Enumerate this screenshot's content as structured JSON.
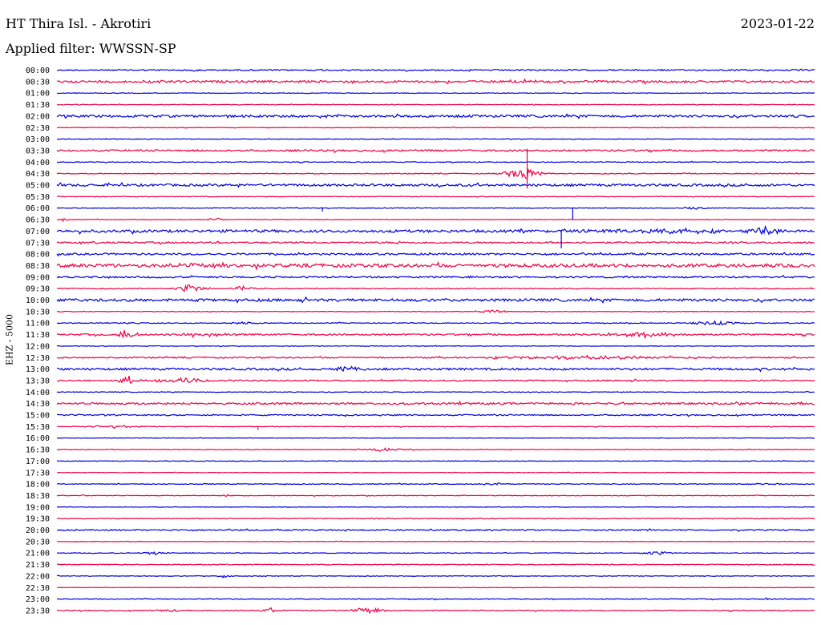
{
  "header": {
    "station": "HT Thira Isl. - Akrotiri",
    "date": "2023-01-22",
    "filter": "Applied filter: WWSSN-SP",
    "channel": "EHZ - 5000"
  },
  "colors": {
    "blue_trace": "#0000dd",
    "red_trace": "#ee0044"
  },
  "chart_data": {
    "type": "line",
    "title": "HT Thira Isl. - Akrotiri",
    "subtitle": "Applied filter: WWSSN-SP",
    "ylabel": "EHZ - 5000",
    "date": "2023-01-22",
    "row_interval_minutes": 30,
    "trace_colors": [
      "#0000dd",
      "#ee0044"
    ],
    "rows": [
      {
        "time": "00:00",
        "color": "#0000dd",
        "noise": 0.8,
        "events": [
          {
            "pos": 0.18,
            "amp": 2,
            "dur": 0.01
          }
        ]
      },
      {
        "time": "00:30",
        "color": "#ee0044",
        "noise": 1.3,
        "events": [
          {
            "pos": 0.6,
            "amp": 2,
            "dur": 0.04
          },
          {
            "pos": 0.13,
            "amp": 1.5,
            "dur": 0.03
          }
        ]
      },
      {
        "time": "01:00",
        "color": "#0000dd",
        "noise": 0.4,
        "events": []
      },
      {
        "time": "01:30",
        "color": "#ee0044",
        "noise": 0.4,
        "events": [
          {
            "pos": 0.63,
            "amp": 1.5,
            "dur": 0.01
          }
        ]
      },
      {
        "time": "02:00",
        "color": "#0000dd",
        "noise": 1.4,
        "events": [
          {
            "pos": 0.35,
            "amp": 1.5,
            "dur": 0.05
          }
        ]
      },
      {
        "time": "02:30",
        "color": "#ee0044",
        "noise": 0.4,
        "events": []
      },
      {
        "time": "03:00",
        "color": "#0000dd",
        "noise": 0.4,
        "events": []
      },
      {
        "time": "03:30",
        "color": "#ee0044",
        "noise": 1.1,
        "events": []
      },
      {
        "time": "04:00",
        "color": "#0000dd",
        "noise": 0.5,
        "events": []
      },
      {
        "time": "04:30",
        "color": "#ee0044",
        "noise": 0.5,
        "events": [
          {
            "pos": 0.615,
            "amp": 8,
            "dur": 0.05
          }
        ]
      },
      {
        "time": "05:00",
        "color": "#0000dd",
        "noise": 1.4,
        "events": []
      },
      {
        "time": "05:30",
        "color": "#ee0044",
        "noise": 0.4,
        "events": []
      },
      {
        "time": "06:00",
        "color": "#0000dd",
        "noise": 0.4,
        "events": [
          {
            "pos": 0.84,
            "amp": 2,
            "dur": 0.03
          }
        ]
      },
      {
        "time": "06:30",
        "color": "#ee0044",
        "noise": 0.4,
        "events": [
          {
            "pos": 0.21,
            "amp": 2.5,
            "dur": 0.02
          },
          {
            "pos": 0.01,
            "amp": 2.5,
            "dur": 0.01
          }
        ]
      },
      {
        "time": "07:00",
        "color": "#0000dd",
        "noise": 1.6,
        "events": [
          {
            "pos": 0.81,
            "amp": 2.5,
            "dur": 0.2
          },
          {
            "pos": 0.93,
            "amp": 7,
            "dur": 0.03
          }
        ]
      },
      {
        "time": "07:30",
        "color": "#ee0044",
        "noise": 1.0,
        "events": []
      },
      {
        "time": "08:00",
        "color": "#0000dd",
        "noise": 1.1,
        "events": []
      },
      {
        "time": "08:30",
        "color": "#ee0044",
        "noise": 2.0,
        "events": [
          {
            "pos": 0.2,
            "amp": 2.5,
            "dur": 0.14
          }
        ]
      },
      {
        "time": "09:00",
        "color": "#0000dd",
        "noise": 1.0,
        "events": []
      },
      {
        "time": "09:30",
        "color": "#ee0044",
        "noise": 0.6,
        "events": [
          {
            "pos": 0.175,
            "amp": 6,
            "dur": 0.04
          },
          {
            "pos": 0.245,
            "amp": 3,
            "dur": 0.04
          }
        ]
      },
      {
        "time": "10:00",
        "color": "#0000dd",
        "noise": 1.6,
        "events": []
      },
      {
        "time": "10:30",
        "color": "#ee0044",
        "noise": 0.4,
        "events": [
          {
            "pos": 0.575,
            "amp": 3,
            "dur": 0.03
          }
        ]
      },
      {
        "time": "11:00",
        "color": "#0000dd",
        "noise": 0.5,
        "events": [
          {
            "pos": 0.87,
            "amp": 3,
            "dur": 0.07
          },
          {
            "pos": 0.25,
            "amp": 2,
            "dur": 0.04
          },
          {
            "pos": 0.1,
            "amp": 1.5,
            "dur": 0.02
          }
        ]
      },
      {
        "time": "11:30",
        "color": "#ee0044",
        "noise": 1.0,
        "events": [
          {
            "pos": 0.09,
            "amp": 6,
            "dur": 0.03
          },
          {
            "pos": 0.77,
            "amp": 3,
            "dur": 0.1
          },
          {
            "pos": 0.2,
            "amp": 2,
            "dur": 0.08
          }
        ]
      },
      {
        "time": "12:00",
        "color": "#0000dd",
        "noise": 0.4,
        "events": []
      },
      {
        "time": "12:30",
        "color": "#ee0044",
        "noise": 0.8,
        "events": [
          {
            "pos": 0.575,
            "amp": 2.5,
            "dur": 0.02
          },
          {
            "pos": 0.7,
            "amp": 2,
            "dur": 0.28
          }
        ]
      },
      {
        "time": "13:00",
        "color": "#0000dd",
        "noise": 1.3,
        "events": [
          {
            "pos": 0.38,
            "amp": 3,
            "dur": 0.04
          }
        ]
      },
      {
        "time": "13:30",
        "color": "#ee0044",
        "noise": 0.8,
        "events": [
          {
            "pos": 0.095,
            "amp": 6,
            "dur": 0.03
          },
          {
            "pos": 0.17,
            "amp": 3,
            "dur": 0.12
          }
        ]
      },
      {
        "time": "14:00",
        "color": "#0000dd",
        "noise": 0.4,
        "events": []
      },
      {
        "time": "14:30",
        "color": "#ee0044",
        "noise": 1.2,
        "events": []
      },
      {
        "time": "15:00",
        "color": "#0000dd",
        "noise": 0.8,
        "events": []
      },
      {
        "time": "15:30",
        "color": "#ee0044",
        "noise": 0.4,
        "events": [
          {
            "pos": 0.075,
            "amp": 2,
            "dur": 0.08
          }
        ]
      },
      {
        "time": "16:00",
        "color": "#0000dd",
        "noise": 0.3,
        "events": []
      },
      {
        "time": "16:30",
        "color": "#ee0044",
        "noise": 0.4,
        "events": [
          {
            "pos": 0.43,
            "amp": 2,
            "dur": 0.08
          }
        ]
      },
      {
        "time": "17:00",
        "color": "#0000dd",
        "noise": 0.4,
        "events": []
      },
      {
        "time": "17:30",
        "color": "#ee0044",
        "noise": 0.3,
        "events": []
      },
      {
        "time": "18:00",
        "color": "#0000dd",
        "noise": 0.5,
        "events": [
          {
            "pos": 0.575,
            "amp": 1.5,
            "dur": 0.04
          },
          {
            "pos": 0.94,
            "amp": 1.5,
            "dur": 0.05
          }
        ]
      },
      {
        "time": "18:30",
        "color": "#ee0044",
        "noise": 0.4,
        "events": [
          {
            "pos": 0.225,
            "amp": 2.5,
            "dur": 0.02
          }
        ]
      },
      {
        "time": "19:00",
        "color": "#0000dd",
        "noise": 0.3,
        "events": []
      },
      {
        "time": "19:30",
        "color": "#ee0044",
        "noise": 0.5,
        "events": []
      },
      {
        "time": "20:00",
        "color": "#0000dd",
        "noise": 0.8,
        "events": []
      },
      {
        "time": "20:30",
        "color": "#ee0044",
        "noise": 0.3,
        "events": []
      },
      {
        "time": "21:00",
        "color": "#0000dd",
        "noise": 0.4,
        "events": [
          {
            "pos": 0.79,
            "amp": 3,
            "dur": 0.04
          },
          {
            "pos": 0.13,
            "amp": 2,
            "dur": 0.04
          }
        ]
      },
      {
        "time": "21:30",
        "color": "#ee0044",
        "noise": 0.5,
        "events": []
      },
      {
        "time": "22:00",
        "color": "#0000dd",
        "noise": 0.4,
        "events": [
          {
            "pos": 0.22,
            "amp": 2.5,
            "dur": 0.02
          }
        ]
      },
      {
        "time": "22:30",
        "color": "#ee0044",
        "noise": 0.3,
        "events": []
      },
      {
        "time": "23:00",
        "color": "#0000dd",
        "noise": 0.5,
        "events": [
          {
            "pos": 0.94,
            "amp": 2,
            "dur": 0.02
          }
        ]
      },
      {
        "time": "23:30",
        "color": "#ee0044",
        "noise": 0.6,
        "events": [
          {
            "pos": 0.28,
            "amp": 4,
            "dur": 0.02
          },
          {
            "pos": 0.41,
            "amp": 5,
            "dur": 0.04
          },
          {
            "pos": 0.15,
            "amp": 2,
            "dur": 0.04
          }
        ]
      }
    ],
    "spikes": [
      {
        "time": "03:30",
        "pos": 0.62,
        "amp": 3.3
      },
      {
        "time": "06:00",
        "pos": 0.68,
        "amp": 1.0
      },
      {
        "time": "07:00",
        "pos": 0.665,
        "amp": 1.5
      },
      {
        "time": "15:30",
        "pos": 0.265,
        "amp": 0.3
      },
      {
        "time": "06:00",
        "pos": 0.35,
        "amp": 0.3
      }
    ]
  }
}
